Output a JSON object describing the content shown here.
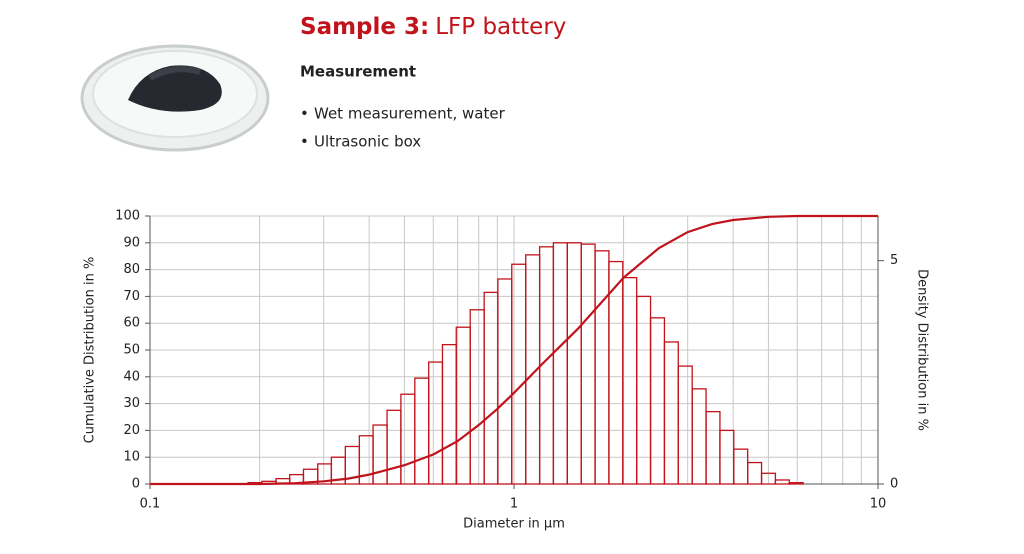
{
  "header": {
    "title_bold": "Sample 3:",
    "title_rest": "LFP battery",
    "subtitle": "Measurement",
    "bullets": [
      "Wet measurement, water",
      "Ultrasonic box"
    ]
  },
  "chart_data": {
    "type": "histogram",
    "xlabel": "Diameter in µm",
    "ylabel": "Cumulative Distribution in %",
    "y2label": "Density Distribution in %",
    "xscale": "log",
    "xlim": [
      0.1,
      10
    ],
    "xticks": [
      0.1,
      1,
      10
    ],
    "x_minor_ticks": [
      0.2,
      0.3,
      0.4,
      0.5,
      0.6,
      0.7,
      0.8,
      0.9,
      2,
      3,
      4,
      5,
      6,
      7,
      8,
      9
    ],
    "ylim": [
      0,
      100
    ],
    "yticks": [
      0,
      10,
      20,
      30,
      40,
      50,
      60,
      70,
      80,
      90,
      100
    ],
    "y2lim": [
      0,
      6
    ],
    "y2ticks": [
      0,
      5
    ],
    "grid": true,
    "bins": [
      0.186,
      0.203,
      0.222,
      0.242,
      0.264,
      0.289,
      0.315,
      0.344,
      0.376,
      0.41,
      0.448,
      0.489,
      0.534,
      0.583,
      0.636,
      0.694,
      0.758,
      0.828,
      0.903,
      0.986,
      1.077,
      1.176,
      1.283,
      1.401,
      1.53,
      1.67,
      1.823,
      1.99,
      2.173,
      2.372,
      2.59,
      2.827,
      3.087,
      3.37,
      3.679,
      4.016,
      4.385,
      4.787,
      5.226,
      5.705,
      6.228
    ],
    "series": [
      {
        "type": "histogram",
        "axis": "y2",
        "color": "#c0131b",
        "values": [
          0.03,
          0.06,
          0.12,
          0.21,
          0.33,
          0.45,
          0.6,
          0.84,
          1.08,
          1.32,
          1.65,
          2.01,
          2.37,
          2.73,
          3.12,
          3.51,
          3.9,
          4.29,
          4.59,
          4.92,
          5.13,
          5.31,
          5.4,
          5.4,
          5.37,
          5.22,
          4.98,
          4.62,
          4.2,
          3.72,
          3.18,
          2.64,
          2.13,
          1.62,
          1.2,
          0.78,
          0.48,
          0.24,
          0.09,
          0.03
        ]
      },
      {
        "type": "line",
        "color": "#c0131b",
        "x": [
          0.1,
          0.2,
          0.25,
          0.3,
          0.35,
          0.4,
          0.5,
          0.6,
          0.7,
          0.8,
          0.9,
          1,
          1.2,
          1.5,
          2,
          2.5,
          3,
          3.5,
          4,
          5,
          6,
          10
        ],
        "values": [
          0,
          0,
          0.3,
          1,
          2,
          3.5,
          7,
          11,
          16,
          22,
          28,
          34,
          45,
          58,
          77,
          88,
          94,
          97,
          98.5,
          99.7,
          100,
          100
        ]
      }
    ]
  }
}
